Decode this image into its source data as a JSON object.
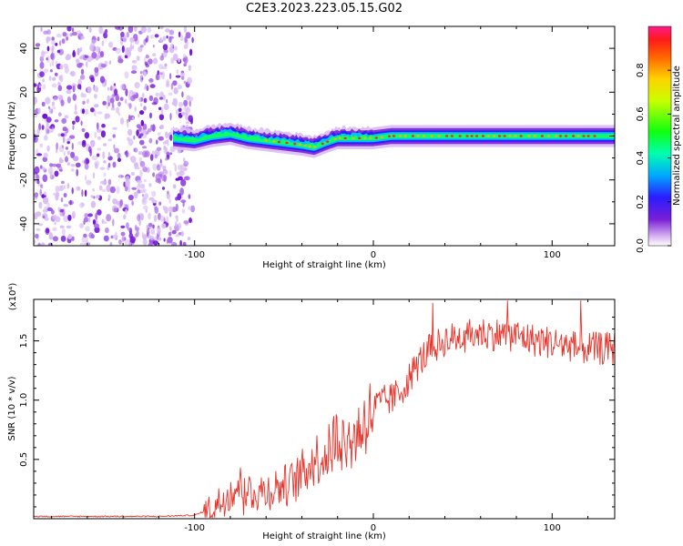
{
  "title": "C2E3.2023.223.05.15.G02",
  "chart_data": [
    {
      "type": "heatmap",
      "xlabel": "Height of straight line (km)",
      "ylabel": "Frequency (Hz)",
      "xlim": [
        -190,
        135
      ],
      "ylim": [
        -50,
        50
      ],
      "xticks": [
        -100,
        0,
        100
      ],
      "yticks": [
        -40,
        -20,
        0,
        20,
        40
      ],
      "colorbar": {
        "label": "Normalized spectral amplitude",
        "range": [
          0,
          1
        ],
        "ticks": [
          "0.0",
          "0.2",
          "0.4",
          "0.6",
          "0.8"
        ],
        "tick_values": [
          0.0,
          0.2,
          0.4,
          0.6,
          0.8
        ]
      },
      "noise_region_x": [
        -190,
        -105
      ],
      "signal_ridge": {
        "x": [
          -112,
          -100,
          -90,
          -80,
          -70,
          -60,
          -50,
          -40,
          -33,
          -27,
          -20,
          -10,
          0,
          10,
          20,
          40,
          60,
          80,
          100,
          120,
          135
        ],
        "frequency_hz": [
          -1,
          -2,
          0,
          1,
          -1,
          -2,
          -3,
          -4,
          -5,
          -3,
          -1,
          -1,
          -1,
          0,
          0,
          0,
          0,
          0,
          0,
          0,
          0
        ]
      }
    },
    {
      "type": "line",
      "xlabel": "Height of straight line (km)",
      "ylabel": "SNR (10 * v/v)",
      "y_multiplier": "(x10⁴)",
      "xlim": [
        -190,
        135
      ],
      "ylim": [
        0,
        1.85
      ],
      "xticks": [
        -100,
        0,
        100
      ],
      "yticks": [
        0.5,
        1.0,
        1.5
      ],
      "ytick_labels": [
        "0.5",
        "1.0",
        "1.5"
      ],
      "series": [
        {
          "color": "#e8332a",
          "x": [
            -190,
            -150,
            -120,
            -100,
            -95,
            -90,
            -85,
            -80,
            -75,
            -70,
            -65,
            -60,
            -55,
            -50,
            -45,
            -40,
            -35,
            -30,
            -25,
            -20,
            -15,
            -10,
            -5,
            0,
            5,
            10,
            15,
            20,
            25,
            30,
            40,
            50,
            60,
            70,
            80,
            90,
            100,
            110,
            120,
            135
          ],
          "values": [
            0.02,
            0.02,
            0.02,
            0.03,
            0.06,
            0.1,
            0.17,
            0.25,
            0.3,
            0.26,
            0.24,
            0.25,
            0.28,
            0.3,
            0.32,
            0.4,
            0.5,
            0.55,
            0.58,
            0.75,
            0.65,
            0.72,
            0.85,
            0.95,
            1.0,
            1.02,
            1.08,
            1.2,
            1.32,
            1.42,
            1.52,
            1.55,
            1.58,
            1.57,
            1.56,
            1.52,
            1.5,
            1.47,
            1.45,
            1.45
          ]
        }
      ]
    }
  ]
}
